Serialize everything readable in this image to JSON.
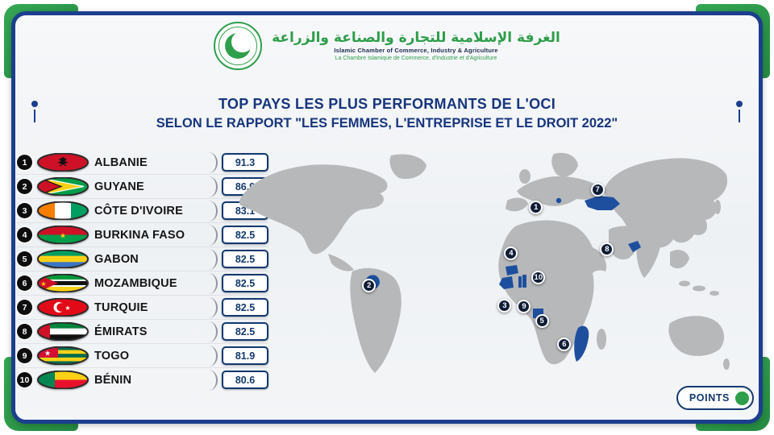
{
  "header": {
    "org_name_ar": "الغرفة الإسلامية للتجارة والصناعة والزراعة",
    "org_name_en": "Islamic Chamber of Commerce, Industry & Agriculture",
    "org_name_fr": "La Chambre Islamique de Commerce, d'Industrie et d'Agriculture"
  },
  "title": {
    "line1": "TOP PAYS LES PLUS PERFORMANTS DE L'OCI",
    "line2": "SELON LE RAPPORT \"LES FEMMES, L'ENTREPRISE ET LE DROIT 2022\""
  },
  "ranking": {
    "rows": [
      {
        "rank": "1",
        "country": "ALBANIE",
        "score": "91.3",
        "flag": "albania"
      },
      {
        "rank": "2",
        "country": "GUYANE",
        "score": "86.9",
        "flag": "guyana"
      },
      {
        "rank": "3",
        "country": "CÔTE D'IVOIRE",
        "score": "83.1",
        "flag": "cote-divoire"
      },
      {
        "rank": "4",
        "country": "BURKINA FASO",
        "score": "82.5",
        "flag": "burkina-faso"
      },
      {
        "rank": "5",
        "country": "GABON",
        "score": "82.5",
        "flag": "gabon"
      },
      {
        "rank": "6",
        "country": "MOZAMBIQUE",
        "score": "82.5",
        "flag": "mozambique"
      },
      {
        "rank": "7",
        "country": "TURQUIE",
        "score": "82.5",
        "flag": "turkey"
      },
      {
        "rank": "8",
        "country": "ÉMIRATS",
        "score": "82.5",
        "flag": "uae"
      },
      {
        "rank": "9",
        "country": "TOGO",
        "score": "81.9",
        "flag": "togo"
      },
      {
        "rank": "10",
        "country": "BÉNIN",
        "score": "80.6",
        "flag": "benin"
      }
    ]
  },
  "map": {
    "markers": [
      {
        "label": "1",
        "x": 61.0,
        "y": 24.3
      },
      {
        "label": "2",
        "x": 27.4,
        "y": 57.2
      },
      {
        "label": "3",
        "x": 54.7,
        "y": 65.8
      },
      {
        "label": "4",
        "x": 56.0,
        "y": 43.8
      },
      {
        "label": "5",
        "x": 62.2,
        "y": 72.6
      },
      {
        "label": "6",
        "x": 66.7,
        "y": 82.5
      },
      {
        "label": "7",
        "x": 73.4,
        "y": 16.6
      },
      {
        "label": "8",
        "x": 75.3,
        "y": 42.1
      },
      {
        "label": "9",
        "x": 58.6,
        "y": 66.4
      },
      {
        "label": "10",
        "x": 61.5,
        "y": 54.1
      }
    ]
  },
  "footer": {
    "points_label": "POINTS"
  },
  "colors": {
    "frame_blue": "#1c3e8e",
    "corner_green": "#2e9e4a",
    "title_blue": "#16357d",
    "score_blue": "#12386e",
    "map_land_gray": "#b6b8ba",
    "map_highlight_blue": "#1d4f9e",
    "marker_navy": "#101d36"
  },
  "chart_data": {
    "type": "table",
    "title": "TOP PAYS LES PLUS PERFORMANTS DE L'OCI SELON LE RAPPORT \"LES FEMMES, L'ENTREPRISE ET LE DROIT 2022\"",
    "categories": [
      "ALBANIE",
      "GUYANE",
      "CÔTE D'IVOIRE",
      "BURKINA FASO",
      "GABON",
      "MOZAMBIQUE",
      "TURQUIE",
      "ÉMIRATS",
      "TOGO",
      "BÉNIN"
    ],
    "values": [
      91.3,
      86.9,
      83.1,
      82.5,
      82.5,
      82.5,
      82.5,
      82.5,
      81.9,
      80.6
    ],
    "unit": "POINTS",
    "legend_position": "bottom-right"
  }
}
